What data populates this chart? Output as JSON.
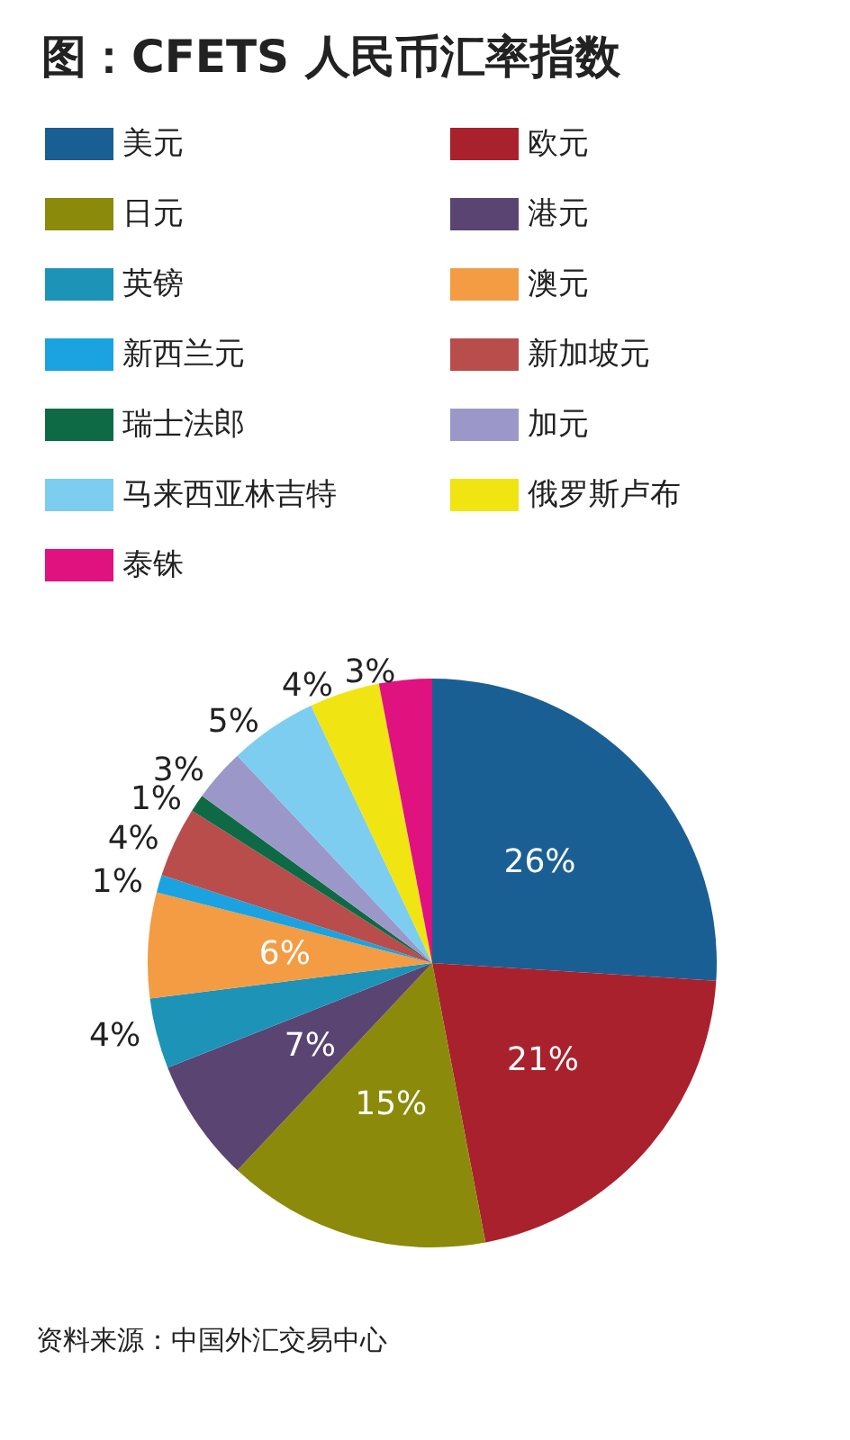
{
  "chart_data": {
    "type": "pie",
    "title": "图：CFETS 人民币汇率指数",
    "categories": [
      "美元",
      "欧元",
      "日元",
      "港元",
      "英镑",
      "澳元",
      "新西兰元",
      "新加坡元",
      "瑞士法郎",
      "加元",
      "马来西亚林吉特",
      "俄罗斯卢布",
      "泰铢"
    ],
    "values": [
      26,
      21,
      15,
      7,
      4,
      6,
      1,
      4,
      1,
      3,
      5,
      4,
      3
    ],
    "colors": [
      "#1a5f94",
      "#a8212c",
      "#8b8a0b",
      "#5a4572",
      "#1d93b8",
      "#f39c44",
      "#1aa3e0",
      "#b94d4b",
      "#0e6a45",
      "#9b98c9",
      "#7dcdf0",
      "#f0e512",
      "#e0127f"
    ],
    "value_labels": [
      "26%",
      "21%",
      "15%",
      "7%",
      "4%",
      "6%",
      "1%",
      "4%",
      "1%",
      "3%",
      "5%",
      "4%",
      "3%"
    ],
    "legend": "top",
    "annotations": [
      "资料来源：中国外汇交易中心"
    ]
  }
}
